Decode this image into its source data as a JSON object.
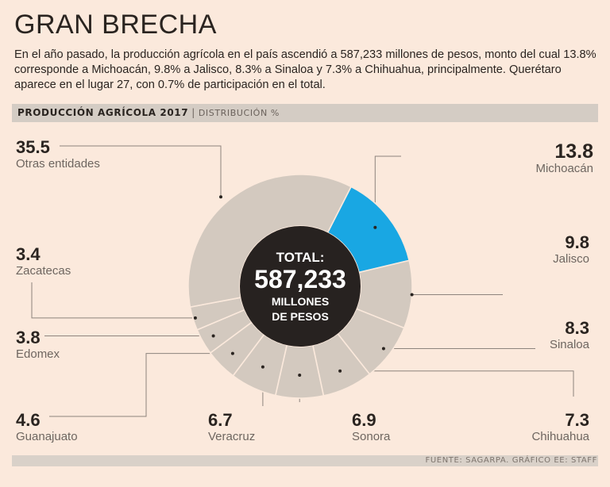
{
  "header": {
    "title": "GRAN BRECHA",
    "subtitle": "En el año pasado, la producción agrícola en el país ascendió a 587,233 millones de pesos, monto del cual 13.8% corresponde a Michoacán, 9.8% a Jalisco, 8.3% a Sinaloa y 7.3% a Chihuahua, principalmente. Querétaro aparece en el lugar 27, con 0.7% de participación en el total.",
    "section_bold": "PRODUCCIÓN AGRÍCOLA 2017",
    "section_sep": "|",
    "section_light": "DISTRIBUCIÓN %"
  },
  "center": {
    "line1": "TOTAL:",
    "line2": "587,233",
    "line3": "MILLONES",
    "line4": "DE PESOS"
  },
  "colors": {
    "background": "#fbe9dc",
    "segment": "#d3c9bf",
    "highlight": "#19a7e3",
    "center": "#272220",
    "leader": "#8d847d"
  },
  "chart_data": {
    "type": "pie",
    "title": "PRODUCCIÓN AGRÍCOLA 2017",
    "subtitle": "DISTRIBUCIÓN %",
    "total_label": "587,233 millones de pesos",
    "categories": [
      "Michoacán",
      "Jalisco",
      "Sinaloa",
      "Chihuahua",
      "Sonora",
      "Veracruz",
      "Guanajuato",
      "Edomex",
      "Zacatecas",
      "Otras entidades"
    ],
    "values": [
      13.8,
      9.8,
      8.3,
      7.3,
      6.9,
      6.7,
      4.6,
      3.8,
      3.4,
      35.5
    ],
    "value_labels": [
      "13.8",
      "9.8",
      "8.3",
      "7.3",
      "6.9",
      "6.7",
      "4.6",
      "3.8",
      "3.4",
      "35.5"
    ],
    "highlight": "Michoacán"
  },
  "footer": {
    "source": "FUENTE: SAGARPA. GRÁFICO EE: STAFF"
  }
}
